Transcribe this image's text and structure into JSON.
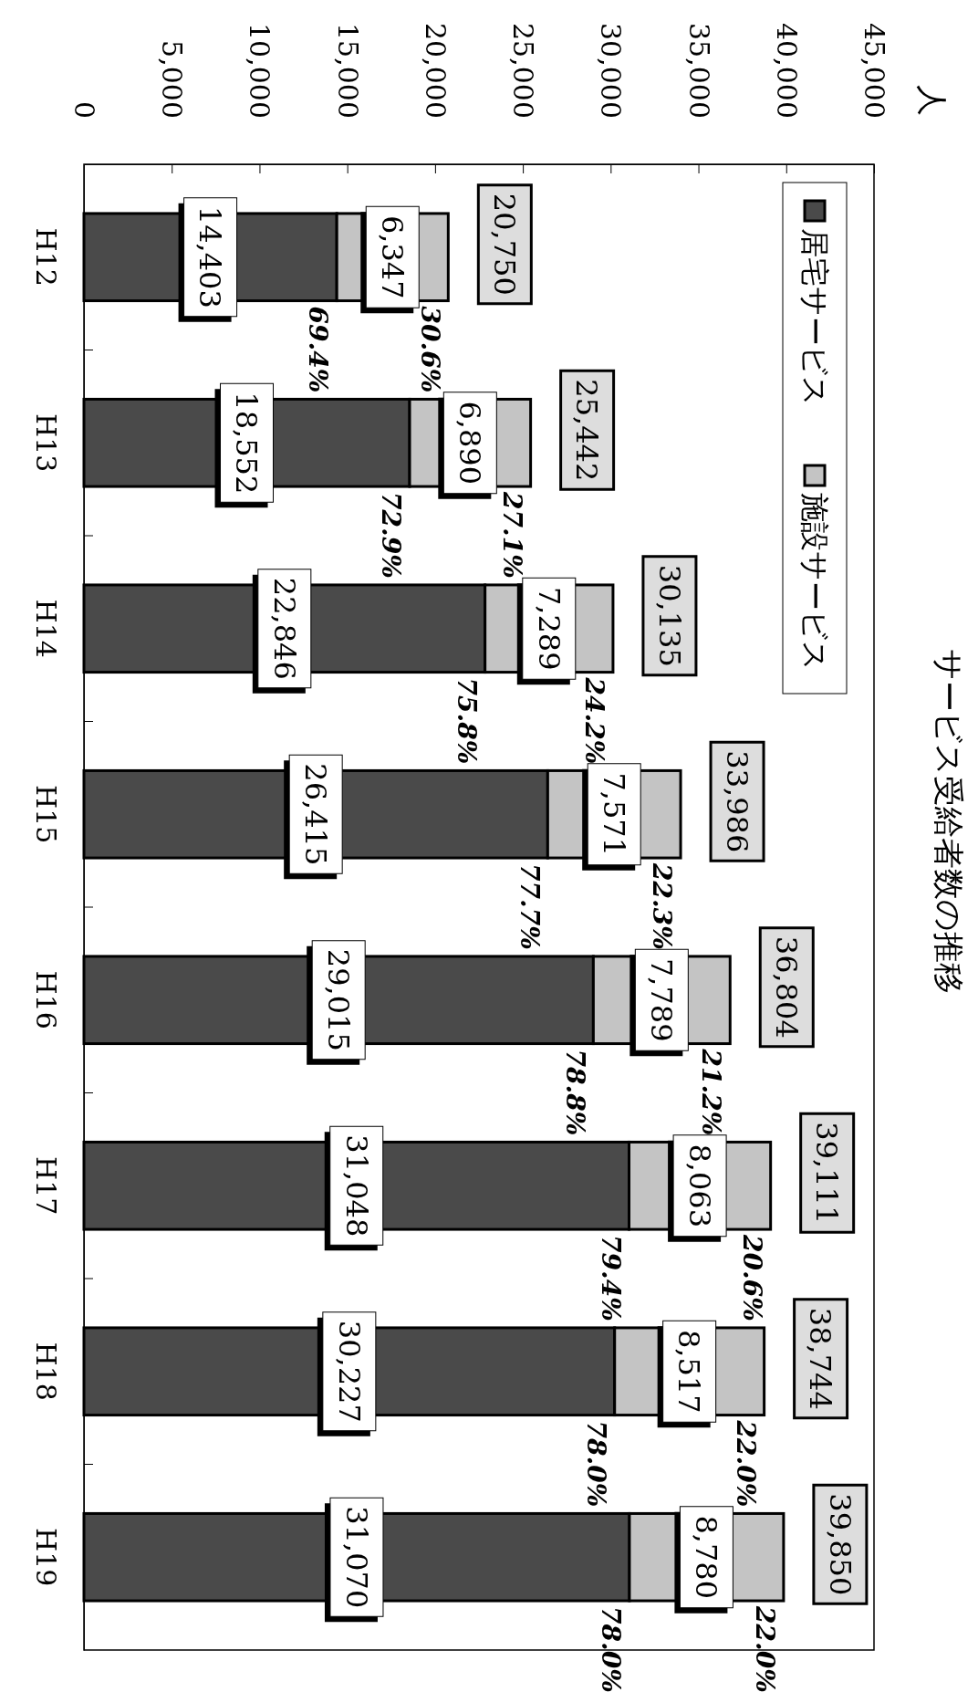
{
  "chart_data": {
    "type": "bar",
    "orientation": "horizontal",
    "title": "サービス受給者数の推移",
    "categories": [
      "H12",
      "H13",
      "H14",
      "H15",
      "H16",
      "H17",
      "H18",
      "H19"
    ],
    "stacked": true,
    "legend": "top right",
    "series": [
      {
        "name": "居宅サービス",
        "color": "#4a4a4a",
        "values": [
          14403,
          18552,
          22846,
          26415,
          29015,
          31048,
          30227,
          31070
        ],
        "value_labels": [
          "14,403",
          "18,552",
          "22,846",
          "26,415",
          "29,015",
          "31,048",
          "30,227",
          "31,070"
        ]
      },
      {
        "name": "施設サービス",
        "color": "#c4c4c4",
        "values": [
          6347,
          6890,
          7289,
          7571,
          7789,
          8063,
          8517,
          8780
        ],
        "value_labels": [
          "6,347",
          "6,890",
          "7,289",
          "7,571",
          "7,789",
          "8,063",
          "8,517",
          "8,780"
        ]
      }
    ],
    "totals": [
      "20,750",
      "25,442",
      "30,135",
      "33,986",
      "36,804",
      "39,111",
      "38,744",
      "39,850"
    ],
    "xlim": [
      0,
      45000
    ],
    "xticks": [
      0,
      {
        "value": 5000,
        "label": "5,000"
      },
      {
        "value": 10000,
        "label": "10,000"
      },
      {
        "value": 15000,
        "label": "15,000"
      },
      {
        "value": 20000,
        "label": "20,000"
      },
      {
        "value": 25000,
        "label": "25,000"
      },
      {
        "value": 30000,
        "label": "30,000"
      },
      {
        "value": 35000,
        "label": "35,000"
      },
      {
        "value": 40000,
        "label": "40,000"
      },
      {
        "value": 45000,
        "label": "45,000"
      }
    ],
    "annotations": [
      "人",
      {
        "text": "69.4%",
        "y": "H12",
        "x": 14403
      },
      {
        "text": "30.6%",
        "y": "H12",
        "x": 20750
      },
      {
        "text": "72.9%",
        "y": "H13",
        "x": 18552
      },
      {
        "text": "27.1%",
        "y": "H13",
        "x": 25442
      },
      {
        "text": "75.8%",
        "y": "H14",
        "x": 22846
      },
      {
        "text": "24.2%",
        "y": "H14",
        "x": 30135
      },
      {
        "text": "77.7%",
        "y": "H15",
        "x": 26415
      },
      {
        "text": "22.3%",
        "y": "H15",
        "x": 33986
      },
      {
        "text": "78.8%",
        "y": "H16",
        "x": 29015
      },
      {
        "text": "21.2%",
        "y": "H16",
        "x": 36804
      },
      {
        "text": "79.4%",
        "y": "H17",
        "x": 31048
      },
      {
        "text": "20.6%",
        "y": "H17",
        "x": 39111
      },
      {
        "text": "78.0%",
        "y": "H18",
        "x": 30227
      },
      {
        "text": "22.0%",
        "y": "H18",
        "x": 38744
      },
      {
        "text": "78.0%",
        "y": "H19",
        "x": 31070
      },
      {
        "text": "22.0%",
        "y": "H19",
        "x": 39850
      }
    ]
  }
}
